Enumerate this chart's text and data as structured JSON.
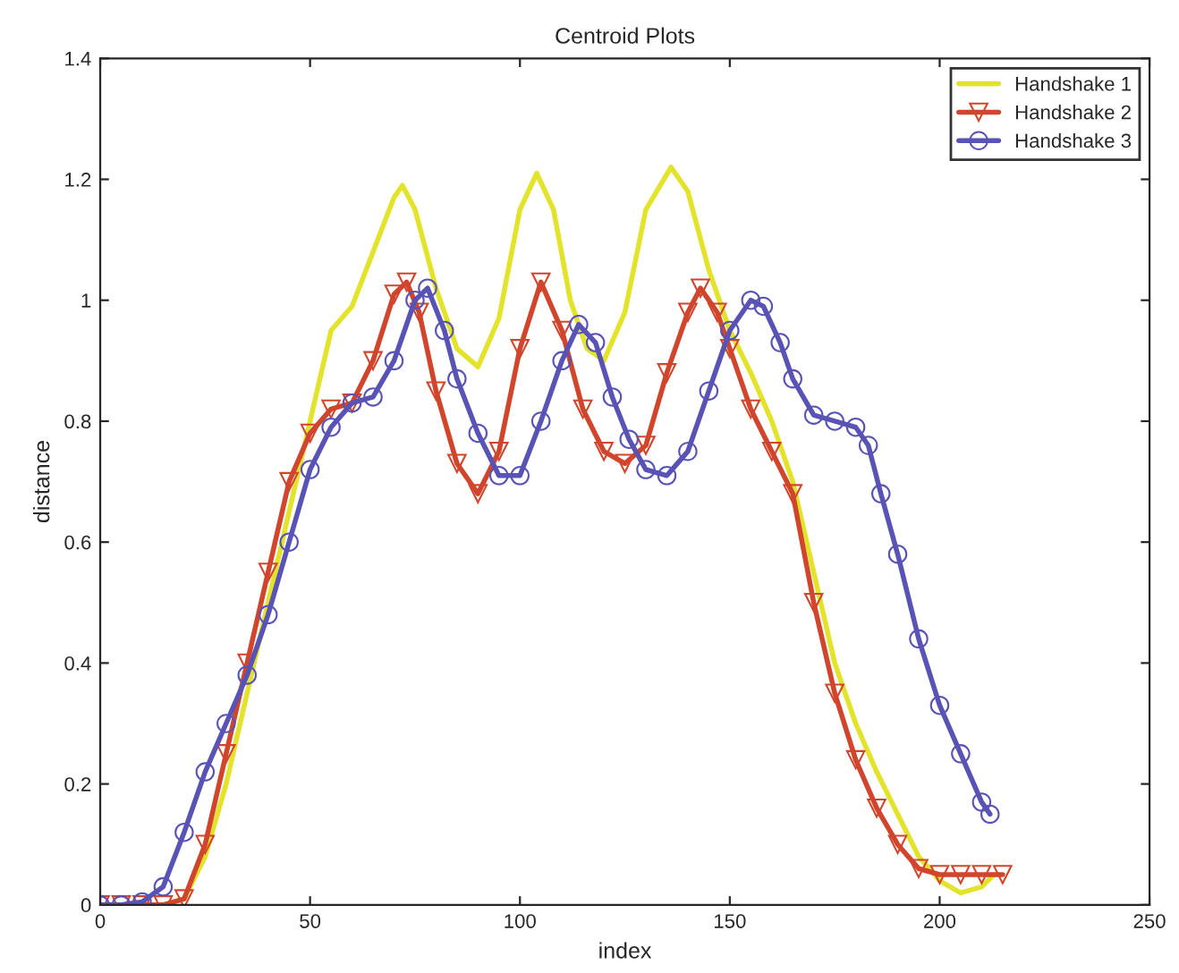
{
  "chart_data": {
    "type": "line",
    "title": "Centroid Plots",
    "xlabel": "index",
    "ylabel": "distance",
    "xlim": [
      0,
      250
    ],
    "xticks": [
      0,
      50,
      100,
      150,
      200,
      250
    ],
    "ylim": [
      0,
      1.4
    ],
    "yticks": [
      0,
      0.2,
      0.4,
      0.6,
      0.8,
      1,
      1.2,
      1.4
    ],
    "grid": false,
    "legend": "top right",
    "series": [
      {
        "name": "Handshake 1",
        "color": "#e3e32c",
        "marker": "none",
        "x": [
          15,
          20,
          25,
          30,
          35,
          40,
          45,
          50,
          55,
          60,
          65,
          70,
          72,
          75,
          80,
          85,
          90,
          95,
          100,
          104,
          108,
          112,
          116,
          120,
          125,
          130,
          136,
          140,
          145,
          150,
          155,
          160,
          165,
          170,
          175,
          180,
          185,
          190,
          195,
          200,
          205,
          210,
          213
        ],
        "values": [
          0,
          0.01,
          0.08,
          0.2,
          0.35,
          0.5,
          0.65,
          0.8,
          0.95,
          0.99,
          1.08,
          1.17,
          1.19,
          1.15,
          1.02,
          0.92,
          0.89,
          0.97,
          1.15,
          1.21,
          1.15,
          1.0,
          0.92,
          0.9,
          0.98,
          1.15,
          1.22,
          1.18,
          1.05,
          0.95,
          0.88,
          0.8,
          0.7,
          0.55,
          0.4,
          0.3,
          0.22,
          0.15,
          0.08,
          0.04,
          0.02,
          0.03,
          0.05
        ]
      },
      {
        "name": "Handshake 2",
        "color": "#d0452c",
        "marker": "triangle",
        "x": [
          0,
          5,
          10,
          15,
          20,
          25,
          30,
          35,
          40,
          45,
          50,
          55,
          60,
          65,
          70,
          73,
          76,
          80,
          85,
          90,
          95,
          100,
          105,
          110,
          115,
          120,
          125,
          130,
          135,
          140,
          143,
          147,
          150,
          155,
          160,
          165,
          170,
          175,
          180,
          185,
          190,
          195,
          200,
          205,
          210,
          215
        ],
        "values": [
          0,
          0,
          0,
          0,
          0.01,
          0.1,
          0.25,
          0.4,
          0.55,
          0.7,
          0.78,
          0.82,
          0.83,
          0.9,
          1.01,
          1.03,
          0.98,
          0.85,
          0.73,
          0.68,
          0.75,
          0.92,
          1.03,
          0.95,
          0.82,
          0.75,
          0.73,
          0.76,
          0.88,
          0.98,
          1.02,
          0.98,
          0.92,
          0.82,
          0.75,
          0.68,
          0.5,
          0.35,
          0.24,
          0.16,
          0.1,
          0.06,
          0.05,
          0.05,
          0.05,
          0.05
        ]
      },
      {
        "name": "Handshake 3",
        "color": "#5853b5",
        "marker": "circle",
        "x": [
          0,
          5,
          10,
          15,
          20,
          25,
          30,
          35,
          40,
          45,
          50,
          55,
          60,
          65,
          70,
          75,
          78,
          82,
          85,
          90,
          95,
          100,
          105,
          110,
          114,
          118,
          122,
          126,
          130,
          135,
          140,
          145,
          150,
          155,
          158,
          162,
          165,
          170,
          175,
          180,
          183,
          186,
          190,
          195,
          200,
          205,
          210,
          212
        ],
        "values": [
          0,
          0,
          0.005,
          0.03,
          0.12,
          0.22,
          0.3,
          0.38,
          0.48,
          0.6,
          0.72,
          0.79,
          0.83,
          0.84,
          0.9,
          1.0,
          1.02,
          0.95,
          0.87,
          0.78,
          0.71,
          0.71,
          0.8,
          0.9,
          0.96,
          0.93,
          0.84,
          0.77,
          0.72,
          0.71,
          0.75,
          0.85,
          0.95,
          1.0,
          0.99,
          0.93,
          0.87,
          0.81,
          0.8,
          0.79,
          0.76,
          0.68,
          0.58,
          0.44,
          0.33,
          0.25,
          0.17,
          0.15
        ]
      }
    ]
  }
}
